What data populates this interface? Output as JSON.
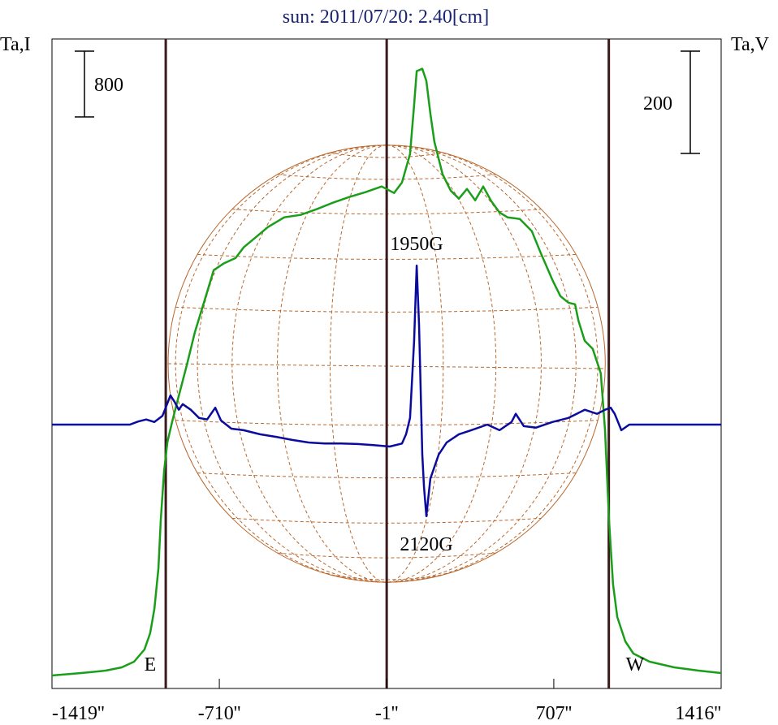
{
  "chart_data": {
    "type": "line",
    "title": "sun: 2011/07/20: 2.40[cm]",
    "y_label": "Ta,I",
    "y2_label": "Ta,V",
    "scale_i": 800,
    "scale_v": 200,
    "annotations": [
      "1950G",
      "2120G",
      "E",
      "W"
    ],
    "xlim": [
      -1419,
      1416
    ],
    "xticks": [
      {
        "value": -1419,
        "label": "-1419''"
      },
      {
        "value": -710,
        "label": "-710''"
      },
      {
        "value": -1,
        "label": "-1''"
      },
      {
        "value": 707,
        "label": "707''"
      },
      {
        "value": 1416,
        "label": "1416''"
      }
    ],
    "ylim": [
      0,
      7900
    ],
    "y2lim": [
      -516,
      754
    ],
    "vlines": [
      -937,
      -1,
      940
    ],
    "disk_radius": 926,
    "series": [
      {
        "name": "I",
        "color": "#1a9e1a",
        "x": [
          -1419,
          -1295,
          -1192,
          -1123,
          -1071,
          -1027,
          -1003,
          -985,
          -968,
          -958,
          -944,
          -930,
          -910,
          -882,
          -848,
          -814,
          -762,
          -734,
          -693,
          -641,
          -607,
          -545,
          -504,
          -435,
          -366,
          -298,
          -229,
          -160,
          -91,
          -22,
          30,
          64,
          98,
          115,
          126,
          150,
          167,
          184,
          201,
          236,
          270,
          305,
          339,
          374,
          408,
          442,
          477,
          511,
          563,
          614,
          649,
          701,
          735,
          769,
          797,
          811,
          838,
          872,
          906,
          924,
          941,
          958,
          976,
          1010,
          1044,
          1113,
          1217,
          1320,
          1416
        ],
        "values": [
          158,
          188,
          217,
          257,
          326,
          474,
          672,
          968,
          1462,
          2055,
          2648,
          2994,
          3241,
          3557,
          3932,
          4327,
          4821,
          5088,
          5167,
          5236,
          5365,
          5513,
          5612,
          5730,
          5760,
          5829,
          5908,
          5977,
          6037,
          6106,
          6027,
          6155,
          6501,
          7094,
          7509,
          7538,
          7390,
          6995,
          6649,
          6254,
          6056,
          5958,
          6076,
          5938,
          6106,
          5928,
          5790,
          5730,
          5711,
          5562,
          5315,
          4969,
          4772,
          4693,
          4673,
          4476,
          4229,
          4130,
          3833,
          3142,
          2055,
          1265,
          869,
          573,
          425,
          326,
          257,
          217,
          188
        ]
      },
      {
        "name": "V",
        "color": "#0a0a9e",
        "axis": "y2",
        "x": [
          -1419,
          -1089,
          -1054,
          -1020,
          -985,
          -951,
          -934,
          -917,
          -899,
          -882,
          -865,
          -831,
          -796,
          -762,
          -727,
          -703,
          -659,
          -607,
          -538,
          -469,
          -401,
          -332,
          -263,
          -194,
          -125,
          -57,
          12,
          64,
          81,
          98,
          115,
          126,
          136,
          143,
          150,
          157,
          167,
          184,
          219,
          253,
          305,
          357,
          425,
          477,
          528,
          546,
          580,
          632,
          701,
          769,
          804,
          838,
          890,
          924,
          948,
          965,
          993,
          1027,
          1182,
          1416
        ],
        "values": [
          0,
          0,
          6,
          10,
          5,
          17,
          37,
          57,
          44,
          29,
          40,
          29,
          13,
          10,
          33,
          8,
          -8,
          -11,
          -19,
          -24,
          -30,
          -35,
          -37,
          -37,
          -38,
          -40,
          -43,
          -37,
          -19,
          13,
          163,
          311,
          195,
          68,
          -59,
          -122,
          -179,
          -106,
          -59,
          -35,
          -19,
          -11,
          0,
          -11,
          5,
          21,
          -3,
          -6,
          5,
          13,
          21,
          29,
          21,
          29,
          33,
          21,
          -11,
          0,
          0,
          0
        ]
      }
    ]
  }
}
